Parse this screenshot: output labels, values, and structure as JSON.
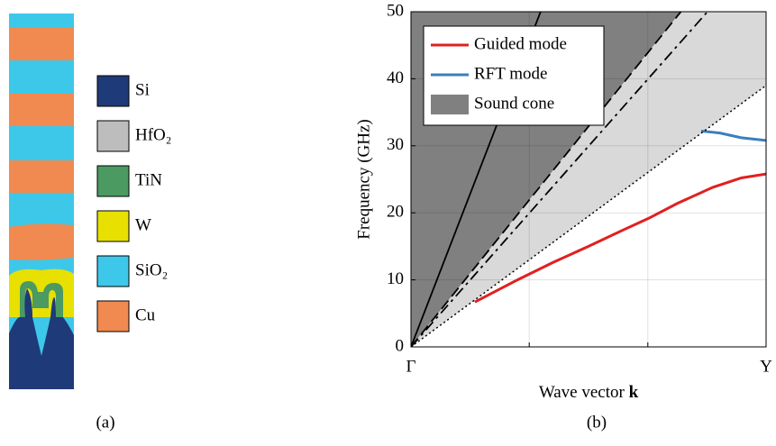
{
  "panel_a": {
    "label": "(a)",
    "materials": [
      {
        "name": "Si",
        "color": "#1f3a78"
      },
      {
        "name": "HfO₂",
        "color": "#bdbdbd"
      },
      {
        "name": "TiN",
        "color": "#4a9a62"
      },
      {
        "name": "W",
        "color": "#e8e000"
      },
      {
        "name": "SiO₂",
        "color": "#3dc8ea"
      },
      {
        "name": "Cu",
        "color": "#f08a50"
      }
    ]
  },
  "panel_b": {
    "label": "(b)"
  },
  "chart_data": {
    "type": "line",
    "xlabel": "Wave vector",
    "xlabel_vector": "k",
    "ylabel": "Frequency (GHz)",
    "xlim": [
      0,
      1
    ],
    "ylim": [
      0,
      50
    ],
    "xticks": [
      {
        "value": 0,
        "label": "Γ"
      },
      {
        "value": 0.333,
        "label": null
      },
      {
        "value": 0.667,
        "label": null
      },
      {
        "value": 1,
        "label": "Y"
      }
    ],
    "yticks": [
      0,
      10,
      20,
      30,
      40,
      50
    ],
    "grid": true,
    "legend": "upper left",
    "areas": [
      {
        "name": "Sound cone",
        "color": "#808080",
        "x": [
          0,
          0,
          0.76
        ],
        "values": [
          0,
          50,
          50
        ]
      },
      {
        "color": "#d9d9d9",
        "x": [
          0,
          0.76,
          1,
          1
        ],
        "values": [
          0,
          50,
          50,
          39
        ]
      }
    ],
    "series": [
      {
        "name": "Guided mode",
        "color": "#e02020",
        "dash": "solid",
        "width": 3,
        "x": [
          0.18,
          0.3,
          0.4,
          0.5,
          0.6,
          0.67,
          0.75,
          0.85,
          0.93,
          1
        ],
        "values": [
          6.7,
          10.0,
          12.6,
          15.0,
          17.5,
          19.2,
          21.4,
          23.8,
          25.2,
          25.8
        ]
      },
      {
        "name": "RFT mode",
        "color": "#3a7fbf",
        "dash": "solid",
        "width": 3,
        "x": [
          0.817,
          0.87,
          0.93,
          1
        ],
        "values": [
          32.2,
          31.9,
          31.2,
          30.8
        ]
      },
      {
        "color": "#000000",
        "dash": "solid",
        "width": 1.8,
        "x": [
          0,
          0.365
        ],
        "values": [
          0,
          50
        ]
      },
      {
        "color": "#000000",
        "dash": "dashed",
        "width": 1.8,
        "x": [
          0,
          0.76
        ],
        "values": [
          0,
          50
        ]
      },
      {
        "color": "#000000",
        "dash": "dashdot",
        "width": 1.8,
        "x": [
          0,
          0.835
        ],
        "values": [
          0,
          50
        ]
      },
      {
        "color": "#000000",
        "dash": "dotted",
        "width": 1.5,
        "x": [
          0,
          1
        ],
        "values": [
          0,
          39
        ]
      }
    ]
  }
}
